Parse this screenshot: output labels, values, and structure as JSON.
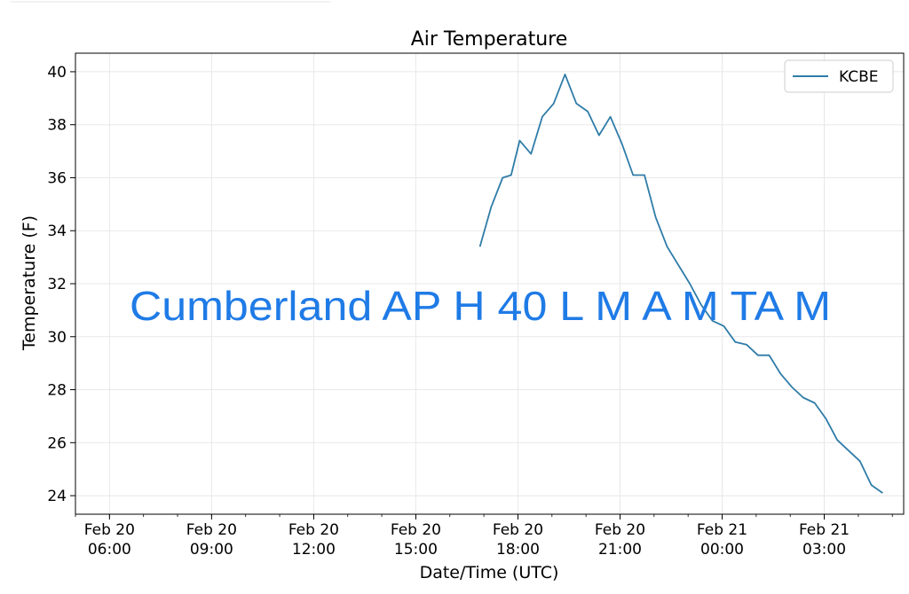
{
  "chart_data": {
    "type": "line",
    "title": "Air Temperature",
    "xlabel": "Date/Time (UTC)",
    "ylabel": "Temperature (F)",
    "ylim": [
      23.3,
      40.7
    ],
    "y_ticks": [
      24,
      26,
      28,
      30,
      32,
      34,
      36,
      38,
      40
    ],
    "xlim": [
      "2023-02-20 05:00",
      "2023-02-21 05:20"
    ],
    "x_ticks": [
      {
        "date": "Feb 20",
        "time": "06:00",
        "at": "2023-02-20 06:00"
      },
      {
        "date": "Feb 20",
        "time": "09:00",
        "at": "2023-02-20 09:00"
      },
      {
        "date": "Feb 20",
        "time": "12:00",
        "at": "2023-02-20 12:00"
      },
      {
        "date": "Feb 20",
        "time": "15:00",
        "at": "2023-02-20 15:00"
      },
      {
        "date": "Feb 20",
        "time": "18:00",
        "at": "2023-02-20 18:00"
      },
      {
        "date": "Feb 20",
        "time": "21:00",
        "at": "2023-02-20 21:00"
      },
      {
        "date": "Feb 21",
        "time": "00:00",
        "at": "2023-02-21 00:00"
      },
      {
        "date": "Feb 21",
        "time": "03:00",
        "at": "2023-02-21 03:00"
      }
    ],
    "grid": true,
    "legend_position": "top-right",
    "series": [
      {
        "name": "KCBE",
        "color": "#2f7ca8",
        "points": [
          [
            "2023-02-20 16:53",
            33.4
          ],
          [
            "2023-02-20 17:13",
            34.9
          ],
          [
            "2023-02-20 17:33",
            36.0
          ],
          [
            "2023-02-20 17:48",
            36.1
          ],
          [
            "2023-02-20 18:03",
            37.4
          ],
          [
            "2023-02-20 18:23",
            36.9
          ],
          [
            "2023-02-20 18:43",
            38.3
          ],
          [
            "2023-02-20 19:03",
            38.8
          ],
          [
            "2023-02-20 19:23",
            39.9
          ],
          [
            "2023-02-20 19:43",
            38.8
          ],
          [
            "2023-02-20 20:03",
            38.5
          ],
          [
            "2023-02-20 20:23",
            37.6
          ],
          [
            "2023-02-20 20:43",
            38.3
          ],
          [
            "2023-02-20 21:03",
            37.3
          ],
          [
            "2023-02-20 21:23",
            36.1
          ],
          [
            "2023-02-20 21:43",
            36.1
          ],
          [
            "2023-02-20 22:03",
            34.5
          ],
          [
            "2023-02-20 22:23",
            33.4
          ],
          [
            "2023-02-20 22:43",
            32.7
          ],
          [
            "2023-02-20 23:03",
            32.0
          ],
          [
            "2023-02-20 23:23",
            31.2
          ],
          [
            "2023-02-20 23:43",
            30.6
          ],
          [
            "2023-02-21 00:03",
            30.4
          ],
          [
            "2023-02-21 00:23",
            29.8
          ],
          [
            "2023-02-21 00:43",
            29.7
          ],
          [
            "2023-02-21 01:03",
            29.3
          ],
          [
            "2023-02-21 01:23",
            29.3
          ],
          [
            "2023-02-21 01:43",
            28.6
          ],
          [
            "2023-02-21 02:03",
            28.1
          ],
          [
            "2023-02-21 02:23",
            27.7
          ],
          [
            "2023-02-21 02:43",
            27.5
          ],
          [
            "2023-02-21 03:03",
            26.9
          ],
          [
            "2023-02-21 03:23",
            26.1
          ],
          [
            "2023-02-21 03:43",
            25.7
          ],
          [
            "2023-02-21 04:03",
            25.3
          ],
          [
            "2023-02-21 04:23",
            24.4
          ],
          [
            "2023-02-21 04:43",
            24.1
          ]
        ]
      }
    ],
    "overlay_text": "Cumberland AP H 40 L M A M TA M",
    "overlay_color": "#1f7be6"
  }
}
